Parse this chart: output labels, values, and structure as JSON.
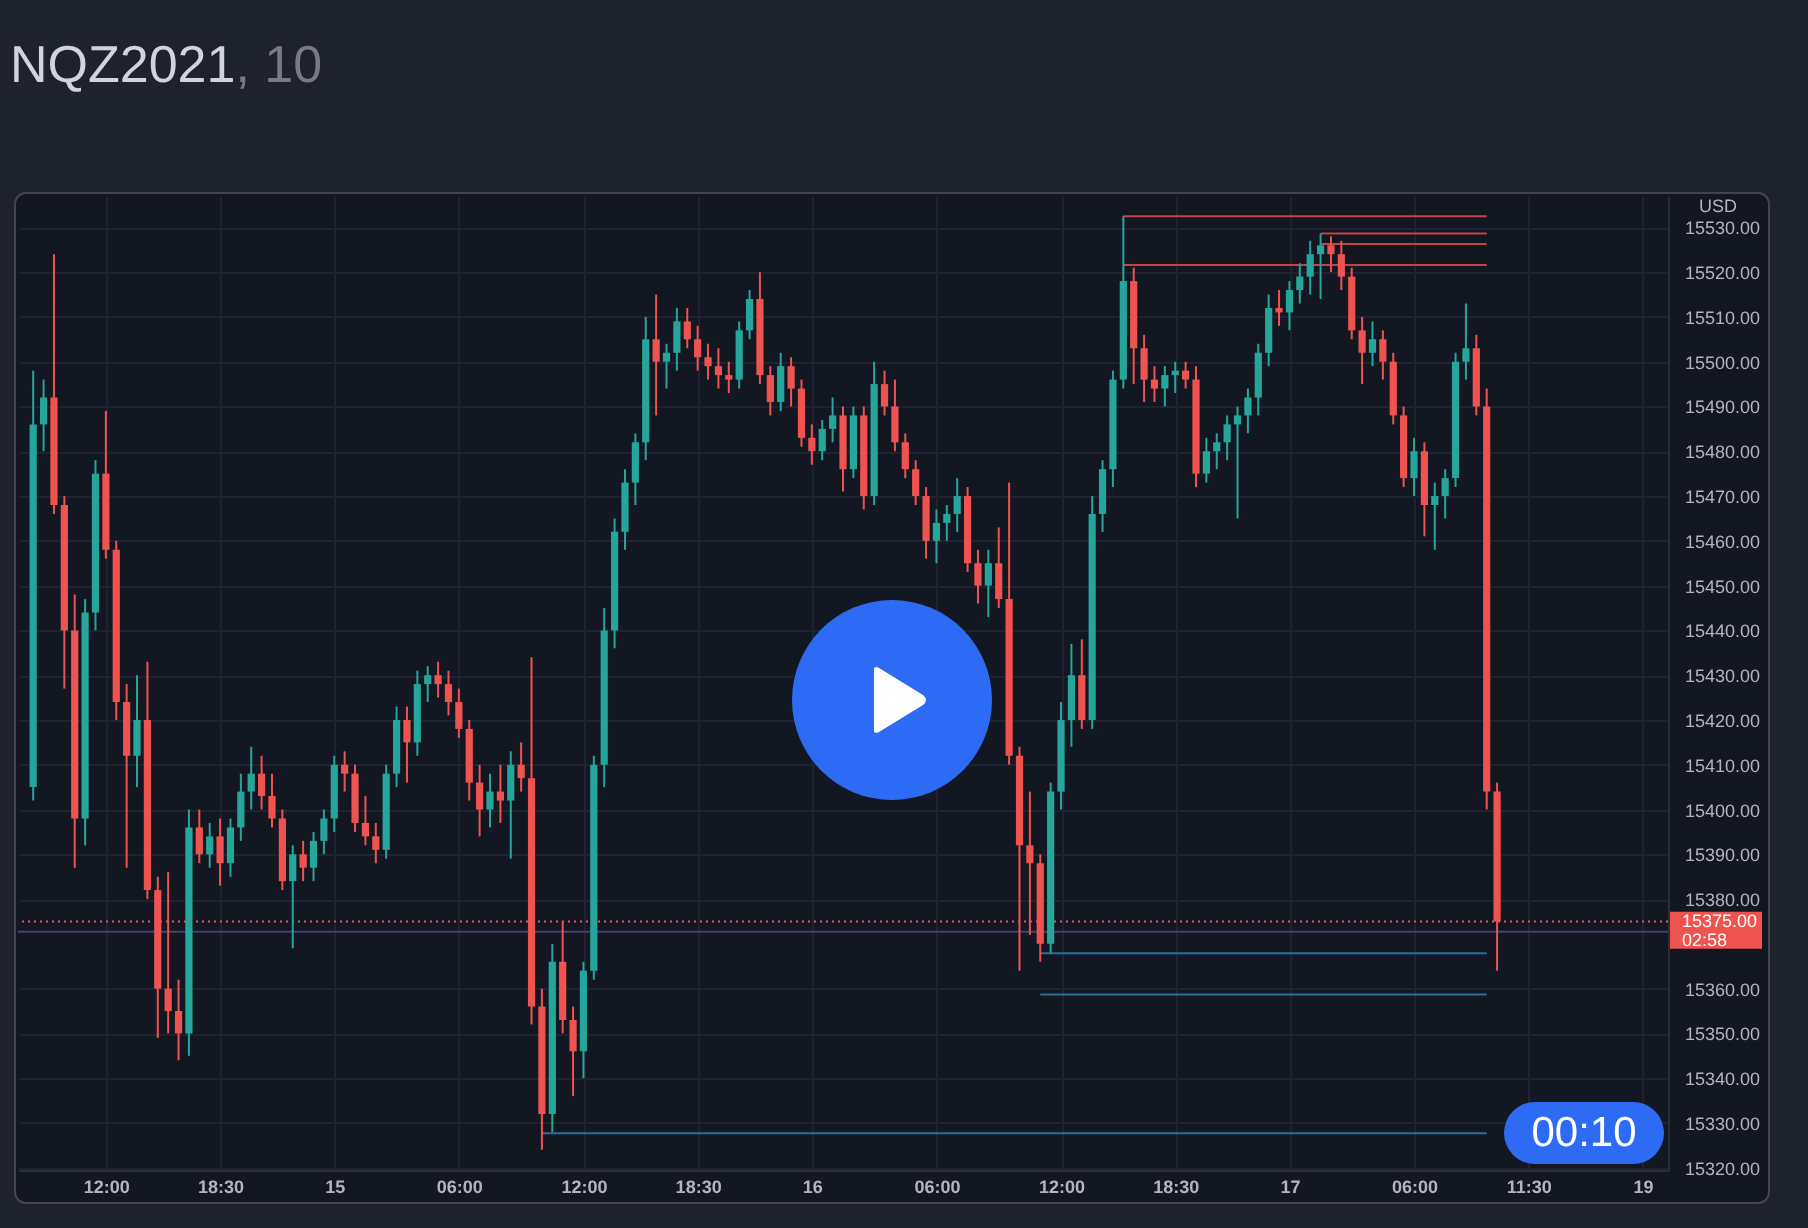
{
  "chart_data": {
    "type": "candlestick",
    "title": "NQZ2021, 10",
    "categories": [
      null,
      null,
      null,
      null,
      null,
      null,
      null,
      "12:00",
      null,
      null,
      null,
      null,
      null,
      null,
      null,
      null,
      null,
      null,
      "18:30",
      null,
      null,
      null,
      null,
      null,
      null,
      null,
      null,
      null,
      null,
      "15",
      null,
      null,
      null,
      null,
      null,
      null,
      null,
      null,
      null,
      null,
      null,
      "06:00",
      null,
      null,
      null,
      null,
      null,
      null,
      null,
      null,
      null,
      null,
      null,
      "12:00",
      null,
      null,
      null,
      null,
      null,
      null,
      null,
      null,
      null,
      null,
      "18:30",
      null,
      null,
      null,
      null,
      null,
      null,
      null,
      null,
      null,
      null,
      "16",
      null,
      null,
      null,
      null,
      null,
      null,
      null,
      null,
      null,
      null,
      null,
      "06:00",
      null,
      null,
      null,
      null,
      null,
      null,
      null,
      null,
      null,
      null,
      null,
      "12:00",
      null,
      null,
      null,
      null,
      null,
      null,
      null,
      null,
      null,
      null,
      "18:30",
      null,
      null,
      null,
      null,
      null,
      null,
      null,
      null,
      null,
      null,
      "17",
      null,
      null,
      null,
      null,
      null,
      null,
      null,
      null,
      null,
      null,
      null,
      "06:00",
      null,
      null,
      null,
      null,
      null,
      null,
      null,
      null,
      null,
      null,
      "11:30",
      null,
      null,
      null,
      null,
      null,
      null,
      null,
      null,
      null,
      null,
      "19",
      null
    ],
    "ohlc": [
      [
        15405,
        15498,
        15402,
        15486
      ],
      [
        15486,
        15496,
        15480,
        15492
      ],
      [
        15492,
        15524,
        15466,
        15468
      ],
      [
        15468,
        15470,
        15427,
        15440
      ],
      [
        15440,
        15448,
        15387,
        15398
      ],
      [
        15398,
        15447,
        15392,
        15444
      ],
      [
        15444,
        15478,
        15440,
        15475
      ],
      [
        15475,
        15489,
        15456,
        15458
      ],
      [
        15458,
        15460,
        15420,
        15424
      ],
      [
        15424,
        15428,
        15387,
        15412
      ],
      [
        15412,
        15430,
        15405,
        15420
      ],
      [
        15420,
        15433,
        15380,
        15382
      ],
      [
        15382,
        15385,
        15349,
        15360
      ],
      [
        15360,
        15386,
        15350,
        15355
      ],
      [
        15355,
        15362,
        15344,
        15350
      ],
      [
        15350,
        15400,
        15345,
        15396
      ],
      [
        15396,
        15400,
        15388,
        15390
      ],
      [
        15390,
        15397,
        15387,
        15394
      ],
      [
        15394,
        15398,
        15383,
        15388
      ],
      [
        15388,
        15398,
        15385,
        15396
      ],
      [
        15396,
        15408,
        15393,
        15404
      ],
      [
        15404,
        15414,
        15400,
        15408
      ],
      [
        15408,
        15412,
        15400,
        15403
      ],
      [
        15403,
        15408,
        15396,
        15398
      ],
      [
        15398,
        15400,
        15382,
        15384
      ],
      [
        15384,
        15392,
        15369,
        15390
      ],
      [
        15390,
        15393,
        15384,
        15387
      ],
      [
        15387,
        15395,
        15384,
        15393
      ],
      [
        15393,
        15400,
        15390,
        15398
      ],
      [
        15398,
        15412,
        15395,
        15410
      ],
      [
        15410,
        15413,
        15404,
        15408
      ],
      [
        15408,
        15410,
        15395,
        15397
      ],
      [
        15397,
        15403,
        15392,
        15394
      ],
      [
        15394,
        15397,
        15388,
        15391
      ],
      [
        15391,
        15410,
        15389,
        15408
      ],
      [
        15408,
        15423,
        15405,
        15420
      ],
      [
        15420,
        15423,
        15406,
        15415
      ],
      [
        15415,
        15431,
        15412,
        15428
      ],
      [
        15428,
        15432,
        15424,
        15430
      ],
      [
        15430,
        15433,
        15425,
        15428
      ],
      [
        15428,
        15431,
        15421,
        15424
      ],
      [
        15424,
        15427,
        15416,
        15418
      ],
      [
        15418,
        15420,
        15402,
        15406
      ],
      [
        15406,
        15410,
        15394,
        15400
      ],
      [
        15400,
        15408,
        15396,
        15404
      ],
      [
        15404,
        15410,
        15397,
        15402
      ],
      [
        15402,
        15413,
        15389,
        15410
      ],
      [
        15410,
        15415,
        15404,
        15407
      ],
      [
        15407,
        15434,
        15352,
        15356
      ],
      [
        15356,
        15360,
        15324,
        15332
      ],
      [
        15332,
        15370,
        15328,
        15366
      ],
      [
        15366,
        15375,
        15350,
        15353
      ],
      [
        15353,
        15356,
        15336,
        15346
      ],
      [
        15346,
        15366,
        15340,
        15364
      ],
      [
        15364,
        15412,
        15362,
        15410
      ],
      [
        15410,
        15445,
        15405,
        15440
      ],
      [
        15440,
        15465,
        15436,
        15462
      ],
      [
        15462,
        15476,
        15458,
        15473
      ],
      [
        15473,
        15484,
        15468,
        15482
      ],
      [
        15482,
        15510,
        15478,
        15505
      ],
      [
        15505,
        15515,
        15488,
        15500
      ],
      [
        15500,
        15504,
        15494,
        15502
      ],
      [
        15502,
        15512,
        15498,
        15509
      ],
      [
        15509,
        15512,
        15503,
        15505
      ],
      [
        15505,
        15508,
        15498,
        15501
      ],
      [
        15501,
        15504,
        15496,
        15499
      ],
      [
        15499,
        15503,
        15494,
        15497
      ],
      [
        15497,
        15500,
        15493,
        15496
      ],
      [
        15496,
        15509,
        15494,
        15507
      ],
      [
        15507,
        15516,
        15505,
        15514
      ],
      [
        15514,
        15520,
        15495,
        15497
      ],
      [
        15497,
        15499,
        15488,
        15491
      ],
      [
        15491,
        15502,
        15489,
        15499
      ],
      [
        15499,
        15501,
        15490,
        15494
      ],
      [
        15494,
        15496,
        15481,
        15483
      ],
      [
        15483,
        15486,
        15477,
        15480
      ],
      [
        15480,
        15487,
        15478,
        15485
      ],
      [
        15485,
        15492,
        15482,
        15488
      ],
      [
        15488,
        15490,
        15471,
        15476
      ],
      [
        15476,
        15490,
        15474,
        15488
      ],
      [
        15488,
        15490,
        15467,
        15470
      ],
      [
        15470,
        15500,
        15468,
        15495
      ],
      [
        15495,
        15498,
        15488,
        15490
      ],
      [
        15490,
        15496,
        15480,
        15482
      ],
      [
        15482,
        15484,
        15474,
        15476
      ],
      [
        15476,
        15478,
        15468,
        15470
      ],
      [
        15470,
        15472,
        15456,
        15460
      ],
      [
        15460,
        15467,
        15455,
        15464
      ],
      [
        15464,
        15468,
        15460,
        15466
      ],
      [
        15466,
        15474,
        15462,
        15470
      ],
      [
        15470,
        15472,
        15453,
        15455
      ],
      [
        15455,
        15458,
        15446,
        15450
      ],
      [
        15450,
        15458,
        15443,
        15455
      ],
      [
        15455,
        15463,
        15445,
        15447
      ],
      [
        15447,
        15473,
        15410,
        15412
      ],
      [
        15412,
        15414,
        15364,
        15392
      ],
      [
        15392,
        15404,
        15372,
        15388
      ],
      [
        15388,
        15390,
        15366,
        15370
      ],
      [
        15370,
        15406,
        15368,
        15404
      ],
      [
        15404,
        15424,
        15400,
        15420
      ],
      [
        15420,
        15437,
        15414,
        15430
      ],
      [
        15430,
        15438,
        15418,
        15420
      ],
      [
        15420,
        15470,
        15418,
        15466
      ],
      [
        15466,
        15478,
        15462,
        15476
      ],
      [
        15476,
        15498,
        15472,
        15496
      ],
      [
        15496,
        15532.5,
        15494,
        15518
      ],
      [
        15518,
        15521,
        15495,
        15503
      ],
      [
        15503,
        15506,
        15491,
        15496
      ],
      [
        15496,
        15499,
        15491,
        15494
      ],
      [
        15494,
        15499,
        15490,
        15497
      ],
      [
        15497,
        15500,
        15493,
        15498
      ],
      [
        15498,
        15500,
        15494,
        15496
      ],
      [
        15496,
        15499,
        15472,
        15475
      ],
      [
        15475,
        15483,
        15473,
        15480
      ],
      [
        15480,
        15484,
        15476,
        15482
      ],
      [
        15482,
        15488,
        15478,
        15486
      ],
      [
        15486,
        15490,
        15465,
        15488
      ],
      [
        15488,
        15494,
        15484,
        15492
      ],
      [
        15492,
        15504,
        15488,
        15502
      ],
      [
        15502,
        15515,
        15499,
        15512
      ],
      [
        15512,
        15516,
        15508,
        15511
      ],
      [
        15511,
        15518,
        15507,
        15516
      ],
      [
        15516,
        15522,
        15513,
        15519
      ],
      [
        15519,
        15527,
        15515,
        15524
      ],
      [
        15524,
        15528.6,
        15514,
        15526
      ],
      [
        15526,
        15528,
        15520,
        15524
      ],
      [
        15524,
        15527,
        15516,
        15519
      ],
      [
        15519,
        15521,
        15505,
        15507
      ],
      [
        15507,
        15510,
        15495,
        15502
      ],
      [
        15502,
        15509,
        15499,
        15505
      ],
      [
        15505,
        15507,
        15496,
        15500
      ],
      [
        15500,
        15502,
        15486,
        15488
      ],
      [
        15488,
        15490,
        15472,
        15474
      ],
      [
        15474,
        15483,
        15470,
        15480
      ],
      [
        15480,
        15482,
        15461,
        15468
      ],
      [
        15468,
        15473,
        15458,
        15470
      ],
      [
        15470,
        15476,
        15465,
        15474
      ],
      [
        15474,
        15502,
        15472,
        15500
      ],
      [
        15500,
        15513,
        15496,
        15503
      ],
      [
        15503,
        15506,
        15488,
        15490
      ],
      [
        15490,
        15494,
        15400,
        15404
      ],
      [
        15404,
        15406,
        15364,
        15375
      ],
      null,
      null,
      null,
      null,
      null,
      null,
      null,
      null,
      null,
      null,
      null,
      null,
      null,
      null,
      null
    ],
    "colors": [
      "#26a69a",
      "#26a69a",
      "#ef5350",
      "#ef5350",
      "#ef5350",
      "#26a69a",
      "#26a69a",
      "#ef5350",
      "#ef5350",
      "#ef5350",
      "#26a69a",
      "#ef5350",
      "#ef5350",
      "#ef5350",
      "#ef5350",
      "#26a69a",
      "#ef5350",
      "#26a69a",
      "#ef5350",
      "#26a69a",
      "#26a69a",
      "#26a69a",
      "#ef5350",
      "#ef5350",
      "#ef5350",
      "#26a69a",
      "#ef5350",
      "#26a69a",
      "#26a69a",
      "#26a69a",
      "#ef5350",
      "#ef5350",
      "#ef5350",
      "#ef5350",
      "#26a69a",
      "#26a69a",
      "#ef5350",
      "#26a69a",
      "#26a69a",
      "#ef5350",
      "#ef5350",
      "#ef5350",
      "#ef5350",
      "#ef5350",
      "#26a69a",
      "#ef5350",
      "#26a69a",
      "#ef5350",
      "#ef5350",
      "#ef5350",
      "#26a69a",
      "#ef5350",
      "#ef5350",
      "#26a69a",
      "#26a69a",
      "#26a69a",
      "#26a69a",
      "#26a69a",
      "#26a69a",
      "#26a69a",
      "#ef5350",
      "#26a69a",
      "#26a69a",
      "#ef5350",
      "#ef5350",
      "#ef5350",
      "#ef5350",
      "#ef5350",
      "#26a69a",
      "#26a69a",
      "#ef5350",
      "#ef5350",
      "#26a69a",
      "#ef5350",
      "#ef5350",
      "#ef5350",
      "#26a69a",
      "#26a69a",
      "#ef5350",
      "#26a69a",
      "#ef5350",
      "#26a69a",
      "#ef5350",
      "#ef5350",
      "#ef5350",
      "#ef5350",
      "#ef5350",
      "#26a69a",
      "#26a69a",
      "#26a69a",
      "#ef5350",
      "#ef5350",
      "#26a69a",
      "#ef5350",
      "#ef5350",
      "#ef5350",
      "#ef5350",
      "#ef5350",
      "#26a69a",
      "#26a69a",
      "#26a69a",
      "#ef5350",
      "#26a69a",
      "#26a69a",
      "#26a69a",
      "#26a69a",
      "#ef5350",
      "#ef5350",
      "#ef5350",
      "#26a69a",
      "#26a69a",
      "#ef5350",
      "#ef5350",
      "#26a69a",
      "#26a69a",
      "#26a69a",
      "#26a69a",
      "#26a69a",
      "#26a69a",
      "#26a69a",
      "#ef5350",
      "#26a69a",
      "#26a69a",
      "#26a69a",
      "#26a69a",
      "#ef5350",
      "#ef5350",
      "#ef5350",
      "#ef5350",
      "#26a69a",
      "#ef5350",
      "#ef5350",
      "#ef5350",
      "#26a69a",
      "#ef5350",
      "#26a69a",
      "#26a69a",
      "#26a69a",
      "#26a69a",
      "#ef5350",
      "#ef5350",
      "#ef5350",
      null,
      null,
      null,
      null,
      null,
      null,
      null,
      null,
      null,
      null,
      null,
      null,
      null,
      null,
      null
    ],
    "series": [
      {
        "type": "line",
        "color": "#c24545",
        "values": [
          null,
          null,
          null,
          null,
          null,
          null,
          null,
          null,
          null,
          null,
          null,
          null,
          null,
          null,
          null,
          null,
          null,
          null,
          null,
          null,
          null,
          null,
          null,
          null,
          null,
          null,
          null,
          null,
          null,
          null,
          null,
          null,
          null,
          null,
          null,
          null,
          null,
          null,
          null,
          null,
          null,
          null,
          null,
          null,
          null,
          null,
          null,
          null,
          null,
          null,
          null,
          null,
          null,
          null,
          null,
          null,
          null,
          null,
          null,
          null,
          null,
          null,
          null,
          null,
          null,
          null,
          null,
          null,
          null,
          null,
          null,
          null,
          null,
          null,
          null,
          null,
          null,
          null,
          null,
          null,
          null,
          null,
          null,
          null,
          null,
          null,
          null,
          null,
          null,
          null,
          null,
          null,
          null,
          null,
          null,
          null,
          null,
          null,
          null,
          null,
          null,
          null,
          null,
          null,
          null,
          15532.5,
          15532.5,
          15532.5,
          15532.5,
          15532.5,
          15532.5,
          15532.5,
          15532.5,
          15532.5,
          15532.5,
          15532.5,
          15532.5,
          15532.5,
          15532.5,
          15532.5,
          15532.5,
          15532.5,
          15532.5,
          15532.5,
          15532.5,
          15532.5,
          15532.5,
          15532.5,
          15532.5,
          15532.5,
          15532.5,
          15532.5,
          15532.5,
          15532.5,
          15532.5,
          15532.5,
          15532.5,
          15532.5,
          15532.5,
          15532.5,
          15532.5,
          null,
          null,
          null,
          null,
          null,
          null,
          null,
          null,
          null,
          null,
          null,
          null,
          null,
          null,
          null,
          null
        ]
      },
      {
        "type": "line",
        "color": "#c24545",
        "values": [
          null,
          null,
          null,
          null,
          null,
          null,
          null,
          null,
          null,
          null,
          null,
          null,
          null,
          null,
          null,
          null,
          null,
          null,
          null,
          null,
          null,
          null,
          null,
          null,
          null,
          null,
          null,
          null,
          null,
          null,
          null,
          null,
          null,
          null,
          null,
          null,
          null,
          null,
          null,
          null,
          null,
          null,
          null,
          null,
          null,
          null,
          null,
          null,
          null,
          null,
          null,
          null,
          null,
          null,
          null,
          null,
          null,
          null,
          null,
          null,
          null,
          null,
          null,
          null,
          null,
          null,
          null,
          null,
          null,
          null,
          null,
          null,
          null,
          null,
          null,
          null,
          null,
          null,
          null,
          null,
          null,
          null,
          null,
          null,
          null,
          null,
          null,
          null,
          null,
          null,
          null,
          null,
          null,
          null,
          null,
          null,
          null,
          null,
          null,
          null,
          null,
          null,
          null,
          null,
          null,
          null,
          null,
          null,
          null,
          null,
          null,
          null,
          null,
          null,
          null,
          null,
          null,
          null,
          null,
          null,
          null,
          null,
          null,
          null,
          15528.6,
          15528.6,
          15528.6,
          15528.6,
          15528.6,
          15528.6,
          15528.6,
          15528.6,
          15528.6,
          15528.6,
          15528.6,
          15528.6,
          15528.6,
          15528.6,
          15528.6,
          15528.6,
          15528.6,
          null,
          null,
          null,
          null,
          null,
          null,
          null,
          null,
          null,
          null,
          null,
          null,
          null,
          null,
          null,
          null
        ]
      },
      {
        "type": "line",
        "color": "#c24545",
        "values": [
          null,
          null,
          null,
          null,
          null,
          null,
          null,
          null,
          null,
          null,
          null,
          null,
          null,
          null,
          null,
          null,
          null,
          null,
          null,
          null,
          null,
          null,
          null,
          null,
          null,
          null,
          null,
          null,
          null,
          null,
          null,
          null,
          null,
          null,
          null,
          null,
          null,
          null,
          null,
          null,
          null,
          null,
          null,
          null,
          null,
          null,
          null,
          null,
          null,
          null,
          null,
          null,
          null,
          null,
          null,
          null,
          null,
          null,
          null,
          null,
          null,
          null,
          null,
          null,
          null,
          null,
          null,
          null,
          null,
          null,
          null,
          null,
          null,
          null,
          null,
          null,
          null,
          null,
          null,
          null,
          null,
          null,
          null,
          null,
          null,
          null,
          null,
          null,
          null,
          null,
          null,
          null,
          null,
          null,
          null,
          null,
          null,
          null,
          null,
          null,
          null,
          null,
          null,
          null,
          null,
          null,
          null,
          null,
          null,
          null,
          null,
          null,
          null,
          null,
          null,
          null,
          null,
          null,
          null,
          null,
          null,
          null,
          null,
          null,
          15526.3,
          15526.3,
          15526.3,
          15526.3,
          15526.3,
          15526.3,
          15526.3,
          15526.3,
          15526.3,
          15526.3,
          15526.3,
          15526.3,
          15526.3,
          15526.3,
          15526.3,
          15526.3,
          15526.3,
          null,
          null,
          null,
          null,
          null,
          null,
          null,
          null,
          null,
          null,
          null,
          null,
          null,
          null,
          null,
          null
        ]
      },
      {
        "type": "line",
        "color": "#c24545",
        "values": [
          null,
          null,
          null,
          null,
          null,
          null,
          null,
          null,
          null,
          null,
          null,
          null,
          null,
          null,
          null,
          null,
          null,
          null,
          null,
          null,
          null,
          null,
          null,
          null,
          null,
          null,
          null,
          null,
          null,
          null,
          null,
          null,
          null,
          null,
          null,
          null,
          null,
          null,
          null,
          null,
          null,
          null,
          null,
          null,
          null,
          null,
          null,
          null,
          null,
          null,
          null,
          null,
          null,
          null,
          null,
          null,
          null,
          null,
          null,
          null,
          null,
          null,
          null,
          null,
          null,
          null,
          null,
          null,
          null,
          null,
          null,
          null,
          null,
          null,
          null,
          null,
          null,
          null,
          null,
          null,
          null,
          null,
          null,
          null,
          null,
          null,
          null,
          null,
          null,
          null,
          null,
          null,
          null,
          null,
          null,
          null,
          null,
          null,
          null,
          null,
          null,
          null,
          null,
          null,
          null,
          15521.6,
          15521.6,
          15521.6,
          15521.6,
          15521.6,
          15521.6,
          15521.6,
          15521.6,
          15521.6,
          15521.6,
          15521.6,
          15521.6,
          15521.6,
          15521.6,
          15521.6,
          15521.6,
          15521.6,
          15521.6,
          15521.6,
          15521.6,
          15521.6,
          15521.6,
          15521.6,
          15521.6,
          15521.6,
          15521.6,
          15521.6,
          15521.6,
          15521.6,
          15521.6,
          15521.6,
          15521.6,
          15521.6,
          15521.6,
          15521.6,
          15521.6,
          null,
          null,
          null,
          null,
          null,
          null,
          null,
          null,
          null,
          null,
          null,
          null,
          null,
          null,
          null,
          null
        ]
      },
      {
        "type": "line",
        "color": "#2b7196",
        "values": [
          null,
          null,
          null,
          null,
          null,
          null,
          null,
          null,
          null,
          null,
          null,
          null,
          null,
          null,
          null,
          null,
          null,
          null,
          null,
          null,
          null,
          null,
          null,
          null,
          null,
          null,
          null,
          null,
          null,
          null,
          null,
          null,
          null,
          null,
          null,
          null,
          null,
          null,
          null,
          null,
          null,
          null,
          null,
          null,
          null,
          null,
          null,
          null,
          null,
          null,
          null,
          null,
          null,
          null,
          null,
          null,
          null,
          null,
          null,
          null,
          null,
          null,
          null,
          null,
          null,
          null,
          null,
          null,
          null,
          null,
          null,
          null,
          null,
          null,
          null,
          null,
          null,
          null,
          null,
          null,
          null,
          null,
          null,
          null,
          null,
          null,
          null,
          null,
          null,
          null,
          null,
          null,
          null,
          null,
          null,
          null,
          null,
          15367.9,
          15367.9,
          15367.9,
          15367.9,
          15367.9,
          15367.9,
          15367.9,
          15367.9,
          15367.9,
          15367.9,
          15367.9,
          15367.9,
          15367.9,
          15367.9,
          15367.9,
          15367.9,
          15367.9,
          15367.9,
          15367.9,
          15367.9,
          15367.9,
          15367.9,
          15367.9,
          15367.9,
          15367.9,
          15367.9,
          15367.9,
          15367.9,
          15367.9,
          15367.9,
          15367.9,
          15367.9,
          15367.9,
          15367.9,
          15367.9,
          15367.9,
          15367.9,
          15367.9,
          15367.9,
          15367.9,
          15367.9,
          15367.9,
          15367.9,
          15367.9,
          null,
          null,
          null,
          null,
          null,
          null,
          null,
          null,
          null,
          null,
          null,
          null,
          null,
          null,
          null,
          null
        ]
      },
      {
        "type": "line",
        "color": "#2b7196",
        "values": [
          null,
          null,
          null,
          null,
          null,
          null,
          null,
          null,
          null,
          null,
          null,
          null,
          null,
          null,
          null,
          null,
          null,
          null,
          null,
          null,
          null,
          null,
          null,
          null,
          null,
          null,
          null,
          null,
          null,
          null,
          null,
          null,
          null,
          null,
          null,
          null,
          null,
          null,
          null,
          null,
          null,
          null,
          null,
          null,
          null,
          null,
          null,
          null,
          null,
          null,
          null,
          null,
          null,
          null,
          null,
          null,
          null,
          null,
          null,
          null,
          null,
          null,
          null,
          null,
          null,
          null,
          null,
          null,
          null,
          null,
          null,
          null,
          null,
          null,
          null,
          null,
          null,
          null,
          null,
          null,
          null,
          null,
          null,
          null,
          null,
          null,
          null,
          null,
          null,
          null,
          null,
          null,
          null,
          null,
          null,
          null,
          null,
          15358.7,
          15358.7,
          15358.7,
          15358.7,
          15358.7,
          15358.7,
          15358.7,
          15358.7,
          15358.7,
          15358.7,
          15358.7,
          15358.7,
          15358.7,
          15358.7,
          15358.7,
          15358.7,
          15358.7,
          15358.7,
          15358.7,
          15358.7,
          15358.7,
          15358.7,
          15358.7,
          15358.7,
          15358.7,
          15358.7,
          15358.7,
          15358.7,
          15358.7,
          15358.7,
          15358.7,
          15358.7,
          15358.7,
          15358.7,
          15358.7,
          15358.7,
          15358.7,
          15358.7,
          15358.7,
          15358.7,
          15358.7,
          15358.7,
          15358.7,
          15358.7,
          null,
          null,
          null,
          null,
          null,
          null,
          null,
          null,
          null,
          null,
          null,
          null,
          null,
          null,
          null,
          null
        ]
      },
      {
        "type": "line",
        "color": "#2b7196",
        "values": [
          null,
          null,
          null,
          null,
          null,
          null,
          null,
          null,
          null,
          null,
          null,
          null,
          null,
          null,
          null,
          null,
          null,
          null,
          null,
          null,
          null,
          null,
          null,
          null,
          null,
          null,
          null,
          null,
          null,
          null,
          null,
          null,
          null,
          null,
          null,
          null,
          null,
          null,
          null,
          null,
          null,
          null,
          null,
          null,
          null,
          null,
          null,
          null,
          null,
          15327.7,
          15327.7,
          15327.7,
          15327.7,
          15327.7,
          15327.7,
          15327.7,
          15327.7,
          15327.7,
          15327.7,
          15327.7,
          15327.7,
          15327.7,
          15327.7,
          15327.7,
          15327.7,
          15327.7,
          15327.7,
          15327.7,
          15327.7,
          15327.7,
          15327.7,
          15327.7,
          15327.7,
          15327.7,
          15327.7,
          15327.7,
          15327.7,
          15327.7,
          15327.7,
          15327.7,
          15327.7,
          15327.7,
          15327.7,
          15327.7,
          15327.7,
          15327.7,
          15327.7,
          15327.7,
          15327.7,
          15327.7,
          15327.7,
          15327.7,
          15327.7,
          15327.7,
          15327.7,
          15327.7,
          15327.7,
          15327.7,
          15327.7,
          15327.7,
          15327.7,
          15327.7,
          15327.7,
          15327.7,
          15327.7,
          15327.7,
          15327.7,
          15327.7,
          15327.7,
          15327.7,
          15327.7,
          15327.7,
          15327.7,
          15327.7,
          15327.7,
          15327.7,
          15327.7,
          15327.7,
          15327.7,
          15327.7,
          15327.7,
          15327.7,
          15327.7,
          15327.7,
          15327.7,
          15327.7,
          15327.7,
          15327.7,
          15327.7,
          15327.7,
          15327.7,
          15327.7,
          15327.7,
          15327.7,
          15327.7,
          15327.7,
          15327.7,
          15327.7,
          15327.7,
          15327.7,
          15327.7,
          null,
          null,
          null,
          null,
          null,
          null,
          null,
          null,
          null,
          null,
          null,
          null,
          null,
          null,
          null,
          null
        ]
      }
    ],
    "ylim": [
      15319.5,
      15537
    ],
    "yticks": [
      {
        "value": 15320,
        "label": "15320.00"
      },
      {
        "value": 15330,
        "label": "15330.00"
      },
      {
        "value": 15340,
        "label": "15340.00"
      },
      {
        "value": 15350,
        "label": "15350.00"
      },
      {
        "value": 15360,
        "label": "15360.00"
      },
      {
        "value": 15380,
        "label": "15380.00"
      },
      {
        "value": 15390,
        "label": "15390.00"
      },
      {
        "value": 15400,
        "label": "15400.00"
      },
      {
        "value": 15410,
        "label": "15410.00"
      },
      {
        "value": 15420,
        "label": "15420.00"
      },
      {
        "value": 15430,
        "label": "15430.00"
      },
      {
        "value": 15440,
        "label": "15440.00"
      },
      {
        "value": 15450,
        "label": "15450.00"
      },
      {
        "value": 15460,
        "label": "15460.00"
      },
      {
        "value": 15470,
        "label": "15470.00"
      },
      {
        "value": 15480,
        "label": "15480.00"
      },
      {
        "value": 15490,
        "label": "15490.00"
      },
      {
        "value": 15500,
        "label": "15500.00"
      },
      {
        "value": 15510,
        "label": "15510.00"
      },
      {
        "value": 15520,
        "label": "15520.00"
      },
      {
        "value": 15530,
        "label": "15530.00"
      }
    ],
    "grid": true,
    "ref_lines": [
      {
        "axis": "y",
        "value": 15375,
        "label": "15375.00",
        "color": "#ef5350",
        "line_style": "dotted"
      },
      {
        "axis": "y",
        "value": 15372.7,
        "color": "#4a3f6e"
      }
    ],
    "annotations": [
      "USD",
      "02:58",
      "00:10"
    ]
  }
}
